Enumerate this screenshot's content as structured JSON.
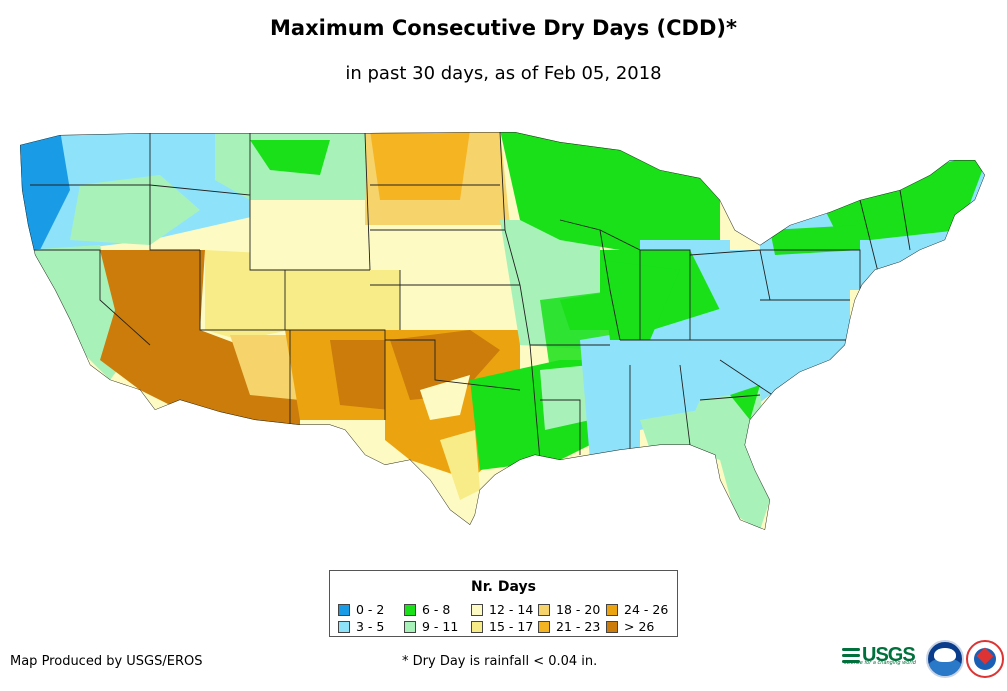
{
  "title": "Maximum Consecutive Dry Days (CDD)*",
  "subtitle": "in past 30 days, as of Feb 05, 2018",
  "legend": {
    "title": "Nr. Days",
    "items": [
      {
        "label": "0 - 2",
        "color": "#1a9be6"
      },
      {
        "label": "3 - 5",
        "color": "#8ee3fb"
      },
      {
        "label": "6 - 8",
        "color": "#19e019"
      },
      {
        "label": "9 - 11",
        "color": "#a8f2b9"
      },
      {
        "label": "12 - 14",
        "color": "#fdfbc3"
      },
      {
        "label": "15 - 17",
        "color": "#f7ec87"
      },
      {
        "label": "18 - 20",
        "color": "#f6d36b"
      },
      {
        "label": "21 - 23",
        "color": "#f5b421"
      },
      {
        "label": "24 - 26",
        "color": "#eba40f"
      },
      {
        "label": "> 26",
        "color": "#cb7c0a"
      }
    ]
  },
  "credit": "Map Produced by USGS/EROS",
  "footnote": "* Dry Day is rainfall < 0.04 in.",
  "logos": {
    "usgs": "USGS",
    "usgs_tagline": "science for a changing world"
  }
}
